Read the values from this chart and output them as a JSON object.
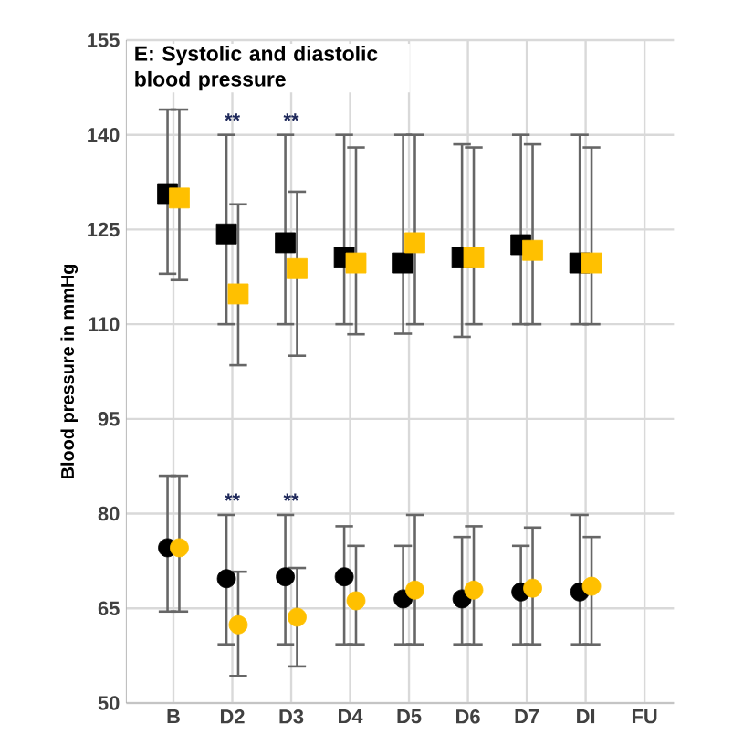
{
  "chart_data": {
    "type": "scatter",
    "title": "E: Systolic and diastolic blood pressure",
    "ylabel": "Blood pressure in mmHg",
    "categories": [
      "B",
      "D2",
      "D3",
      "D4",
      "D5",
      "D6",
      "D7",
      "DI",
      "FU"
    ],
    "series": [
      {
        "color": "#000000",
        "marker": "square",
        "values": [
          130.7,
          124.3,
          122.9,
          120.6,
          119.7,
          120.6,
          122.6,
          119.7,
          null
        ],
        "errors": [
          [
            118,
            144
          ],
          [
            110,
            140
          ],
          [
            110,
            140
          ],
          [
            110,
            140
          ],
          [
            108.5,
            140
          ],
          [
            108,
            138.5
          ],
          [
            110,
            140
          ],
          [
            110,
            140
          ],
          null
        ]
      },
      {
        "color": "#ffc000",
        "marker": "square",
        "values": [
          130,
          114.8,
          118.8,
          119.7,
          122.9,
          120.6,
          121.7,
          119.7,
          null
        ],
        "errors": [
          [
            117,
            144
          ],
          [
            103.5,
            129
          ],
          [
            105,
            131
          ],
          [
            108.4,
            138
          ],
          [
            110,
            140
          ],
          [
            110,
            138
          ],
          [
            110,
            138.5
          ],
          [
            110,
            138
          ],
          null
        ]
      },
      {
        "color": "#000000",
        "marker": "circle",
        "values": [
          74.6,
          69.7,
          70,
          70,
          66.5,
          66.5,
          67.6,
          67.6,
          null
        ],
        "errors": [
          [
            64.5,
            86
          ],
          [
            59.3,
            79.8
          ],
          [
            59.3,
            79.8
          ],
          [
            59.3,
            78
          ],
          [
            59.3,
            74.9
          ],
          [
            59.3,
            76.3
          ],
          [
            59.3,
            74.9
          ],
          [
            59.3,
            79.8
          ],
          null
        ]
      },
      {
        "color": "#ffc000",
        "marker": "circle",
        "values": [
          74.6,
          62.4,
          63.6,
          66.2,
          67.9,
          67.9,
          68.2,
          68.5,
          null
        ],
        "errors": [
          [
            64.5,
            86
          ],
          [
            54.3,
            70.8
          ],
          [
            55.8,
            71.4
          ],
          [
            59.3,
            74.9
          ],
          [
            59.3,
            79.8
          ],
          [
            59.3,
            78
          ],
          [
            59.3,
            77.8
          ],
          [
            59.3,
            76.3
          ],
          null
        ]
      }
    ],
    "ylim": [
      50,
      155
    ],
    "yticks": [
      50,
      65,
      80,
      95,
      110,
      125,
      140,
      155
    ],
    "grid": true,
    "annotations": [
      "**",
      "**",
      "**",
      "**"
    ]
  }
}
